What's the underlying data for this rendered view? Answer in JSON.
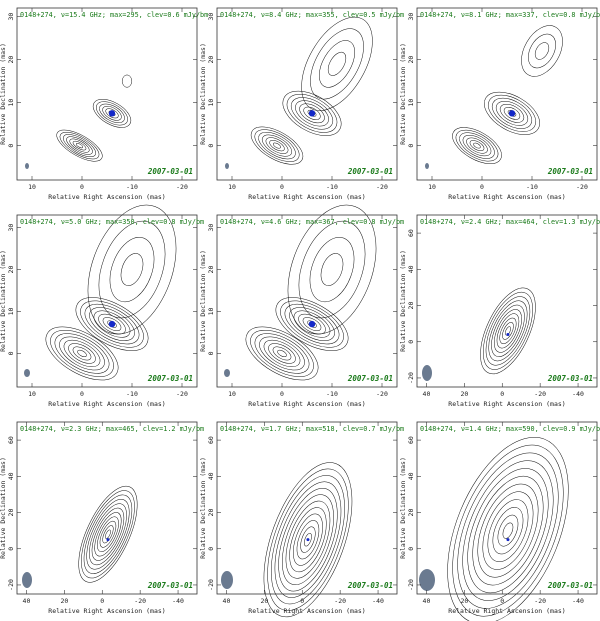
{
  "chart_data": [
    {
      "type": "contour",
      "title": "0148+274, ν=15.4 GHz; max=295, clev=0.6 mJy/bm",
      "date": "2007-03-01",
      "x_label": "Relative Right Ascension (mas)",
      "y_label": "Relative Declination (mas)",
      "xlim": [
        13,
        -23
      ],
      "ylim": [
        -8,
        32
      ],
      "xticks": [
        10,
        0,
        -10,
        -20
      ],
      "yticks": [
        0,
        10,
        20,
        30
      ]
    },
    {
      "type": "contour",
      "title": "0148+274, ν=8.4 GHz; max=355, clev=0.5 mJy/bm",
      "date": "2007-03-01",
      "x_label": "Relative Right Ascension (mas)",
      "y_label": "Relative Declination (mas)",
      "xlim": [
        13,
        -23
      ],
      "ylim": [
        -8,
        32
      ],
      "xticks": [
        10,
        0,
        -10,
        -20
      ],
      "yticks": [
        0,
        10,
        20,
        30
      ]
    },
    {
      "type": "contour",
      "title": "0148+274, ν=8.1 GHz; max=337, clev=0.8 mJy/bm",
      "date": "2007-03-01",
      "x_label": "Relative Right Ascension (mas)",
      "y_label": "Relative Declination (mas)",
      "xlim": [
        13,
        -23
      ],
      "ylim": [
        -8,
        32
      ],
      "xticks": [
        10,
        0,
        -10,
        -20
      ],
      "yticks": [
        0,
        10,
        20,
        30
      ]
    },
    {
      "type": "contour",
      "title": "0148+274, ν=5.0 GHz; max=350, clev=0.8 mJy/bm",
      "date": "2007-03-01",
      "x_label": "Relative Right Ascension (mas)",
      "y_label": "Relative Declination (mas)",
      "xlim": [
        13,
        -23
      ],
      "ylim": [
        -8,
        33
      ],
      "xticks": [
        10,
        0,
        -10,
        -20
      ],
      "yticks": [
        0,
        10,
        20,
        30
      ]
    },
    {
      "type": "contour",
      "title": "0148+274, ν=4.6 GHz; max=367, clev=0.8 mJy/bm",
      "date": "2007-03-01",
      "x_label": "Relative Right Ascension (mas)",
      "y_label": "Relative Declination (mas)",
      "xlim": [
        13,
        -23
      ],
      "ylim": [
        -8,
        33
      ],
      "xticks": [
        10,
        0,
        -10,
        -20
      ],
      "yticks": [
        0,
        10,
        20,
        30
      ]
    },
    {
      "type": "contour",
      "title": "0148+274, ν=2.4 GHz; max=464, clev=1.3 mJy/bm",
      "date": "2007-03-01",
      "x_label": "Relative Right Ascension (mas)",
      "y_label": "Relative Declination (mas)",
      "xlim": [
        45,
        -50
      ],
      "ylim": [
        -25,
        70
      ],
      "xticks": [
        40,
        20,
        0,
        -20,
        -40
      ],
      "yticks": [
        -20,
        0,
        20,
        40,
        60
      ]
    },
    {
      "type": "contour",
      "title": "0148+274, ν=2.3 GHz; max=465, clev=1.2 mJy/bm",
      "date": "2007-03-01",
      "x_label": "Relative Right Ascension (mas)",
      "y_label": "Relative Declination (mas)",
      "xlim": [
        45,
        -50
      ],
      "ylim": [
        -25,
        70
      ],
      "xticks": [
        40,
        20,
        0,
        -20,
        -40
      ],
      "yticks": [
        -20,
        0,
        20,
        40,
        60
      ]
    },
    {
      "type": "contour",
      "title": "0148+274, ν=1.7 GHz; max=518, clev=0.7 mJy/bm",
      "date": "2007-03-01",
      "x_label": "Relative Right Ascension (mas)",
      "y_label": "Relative Declination (mas)",
      "xlim": [
        45,
        -50
      ],
      "ylim": [
        -25,
        70
      ],
      "xticks": [
        40,
        20,
        0,
        -20,
        -40
      ],
      "yticks": [
        -20,
        0,
        20,
        40,
        60
      ]
    },
    {
      "type": "contour",
      "title": "0148+274, ν=1.4 GHz; max=590, clev=0.9 mJy/bm",
      "date": "2007-03-01",
      "x_label": "Relative Right Ascension (mas)",
      "y_label": "Relative Declination (mas)",
      "xlim": [
        45,
        -50
      ],
      "ylim": [
        -25,
        70
      ],
      "xticks": [
        40,
        20,
        0,
        -20,
        -40
      ],
      "yticks": [
        -20,
        0,
        20,
        40,
        60
      ]
    }
  ]
}
